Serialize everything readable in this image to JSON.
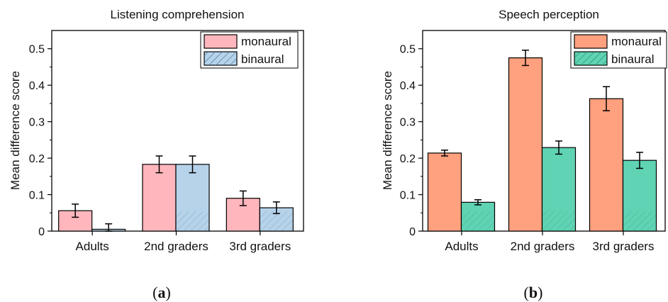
{
  "chart_data": [
    {
      "type": "bar",
      "title": "Listening comprehension",
      "ylabel": "Mean difference score",
      "xlabel": "",
      "ylim": [
        0,
        0.55
      ],
      "yticks": [
        "0",
        "0.1",
        "0.2",
        "0.3",
        "0.4",
        "0.5"
      ],
      "categories": [
        "Adults",
        "2nd graders",
        "3rd graders"
      ],
      "series": [
        {
          "name": "monaural",
          "values": [
            0.056,
            0.183,
            0.09
          ],
          "errors": [
            0.018,
            0.023,
            0.02
          ],
          "color": "#FFB6BC",
          "hatch": false
        },
        {
          "name": "binaural",
          "values": [
            0.005,
            0.183,
            0.064
          ],
          "errors": [
            0.015,
            0.023,
            0.016
          ],
          "color": "#B6D3EA",
          "hatch": true
        }
      ],
      "legend_position": "top-right",
      "caption_open": "(",
      "caption_letter": "a",
      "caption_close": ")"
    },
    {
      "type": "bar",
      "title": "Speech perception",
      "ylabel": "Mean difference score",
      "xlabel": "",
      "ylim": [
        0,
        0.55
      ],
      "yticks": [
        "0",
        "0.1",
        "0.2",
        "0.3",
        "0.4",
        "0.5"
      ],
      "categories": [
        "Adults",
        "2nd graders",
        "3rd graders"
      ],
      "series": [
        {
          "name": "monaural",
          "values": [
            0.214,
            0.475,
            0.363
          ],
          "errors": [
            0.008,
            0.021,
            0.033
          ],
          "color": "#FFA07E",
          "hatch": false
        },
        {
          "name": "binaural",
          "values": [
            0.079,
            0.229,
            0.194
          ],
          "errors": [
            0.007,
            0.018,
            0.022
          ],
          "color": "#5FD3B3",
          "hatch": true
        }
      ],
      "legend_position": "top-right",
      "caption_open": "(",
      "caption_letter": "b",
      "caption_close": ")"
    }
  ]
}
